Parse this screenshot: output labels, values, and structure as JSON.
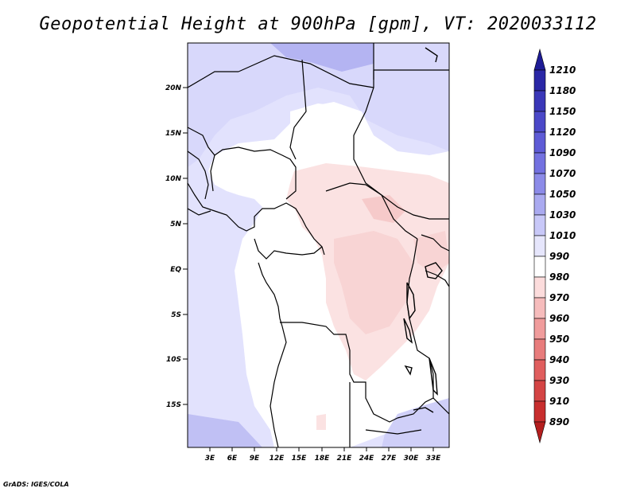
{
  "title": "Geopotential Height at 900hPa [gpm], VT: 2020033112",
  "credit": "GrADS: IGES/COLA",
  "lat_labels": [
    "20N",
    "15N",
    "10N",
    "5N",
    "EQ",
    "5S",
    "10S",
    "15S"
  ],
  "lon_labels": [
    "3E",
    "6E",
    "9E",
    "12E",
    "15E",
    "18E",
    "21E",
    "24E",
    "27E",
    "30E",
    "33E"
  ],
  "colorbar": {
    "levels": [
      "1210",
      "1180",
      "1150",
      "1120",
      "1090",
      "1070",
      "1050",
      "1030",
      "1010",
      "990",
      "980",
      "970",
      "960",
      "950",
      "940",
      "930",
      "910",
      "890"
    ],
    "colors": [
      "#1e1c96",
      "#2a27a6",
      "#3a37b8",
      "#4b48c8",
      "#5e5bd6",
      "#7371e0",
      "#8c8be8",
      "#aaaaf0",
      "#c8c8f8",
      "#e6e6fc",
      "#ffffff",
      "#fcdcdc",
      "#f6bcbc",
      "#f09c9c",
      "#e87c7c",
      "#e05e5e",
      "#d44444",
      "#c82e2e",
      "#b41e1e"
    ]
  },
  "map_colors": {
    "blue_light": "#e2e2fd",
    "blue_mid": "#d4d4fa",
    "blue_dark": "#b0b0f2",
    "pink": "#fbe0e0",
    "pink_mid": "#f8cccc",
    "land_white": "#ffffff"
  }
}
